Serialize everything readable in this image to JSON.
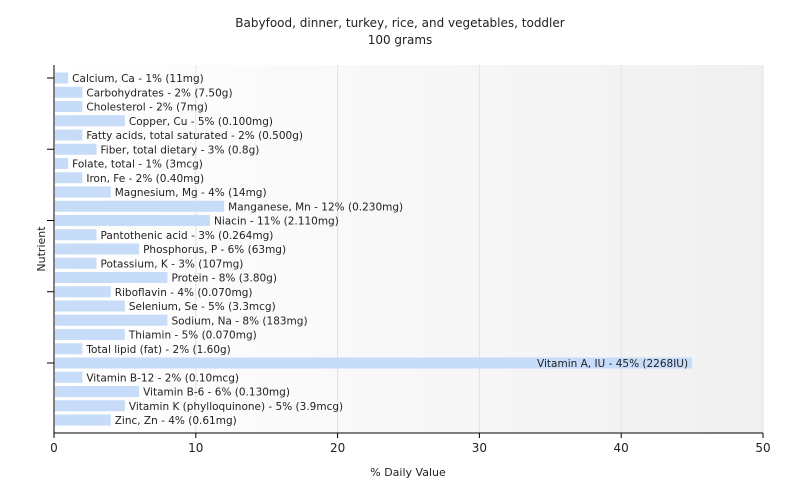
{
  "chart_data": {
    "type": "bar",
    "orientation": "horizontal",
    "title": "Babyfood, dinner, turkey, rice, and vegetables, toddler",
    "subtitle": "100 grams",
    "xlabel": "% Daily Value",
    "ylabel": "Nutrient",
    "xlim": [
      0,
      50
    ],
    "xticks": [
      "0",
      "10",
      "20",
      "30",
      "40",
      "50"
    ],
    "grid": true,
    "colors": {
      "bar": "#c6dcf8",
      "axis": "#000000",
      "grid": "#e2e2e2",
      "plot_bg_end": "#f0f0f0"
    },
    "categories": [
      "Calcium, Ca",
      "Carbohydrates",
      "Cholesterol",
      "Copper, Cu",
      "Fatty acids, total saturated",
      "Fiber, total dietary",
      "Folate, total",
      "Iron, Fe",
      "Magnesium, Mg",
      "Manganese, Mn",
      "Niacin",
      "Pantothenic acid",
      "Phosphorus, P",
      "Potassium, K",
      "Protein",
      "Riboflavin",
      "Selenium, Se",
      "Sodium, Na",
      "Thiamin",
      "Total lipid (fat)",
      "Vitamin A, IU",
      "Vitamin B-12",
      "Vitamin B-6",
      "Vitamin K (phylloquinone)",
      "Zinc, Zn"
    ],
    "values": [
      1,
      2,
      2,
      5,
      2,
      3,
      1,
      2,
      4,
      12,
      11,
      3,
      6,
      3,
      8,
      4,
      5,
      8,
      5,
      2,
      45,
      2,
      6,
      5,
      4
    ],
    "labels": [
      "Calcium, Ca - 1% (11mg)",
      "Carbohydrates - 2% (7.50g)",
      "Cholesterol - 2% (7mg)",
      "Copper, Cu - 5% (0.100mg)",
      "Fatty acids, total saturated - 2% (0.500g)",
      "Fiber, total dietary - 3% (0.8g)",
      "Folate, total - 1% (3mcg)",
      "Iron, Fe - 2% (0.40mg)",
      "Magnesium, Mg - 4% (14mg)",
      "Manganese, Mn - 12% (0.230mg)",
      "Niacin - 11% (2.110mg)",
      "Pantothenic acid - 3% (0.264mg)",
      "Phosphorus, P - 6% (63mg)",
      "Potassium, K - 3% (107mg)",
      "Protein - 8% (3.80g)",
      "Riboflavin - 4% (0.070mg)",
      "Selenium, Se - 5% (3.3mcg)",
      "Sodium, Na - 8% (183mg)",
      "Thiamin - 5% (0.070mg)",
      "Total lipid (fat) - 2% (1.60g)",
      "Vitamin A, IU - 45% (2268IU)",
      "Vitamin B-12 - 2% (0.10mcg)",
      "Vitamin B-6 - 6% (0.130mg)",
      "Vitamin K (phylloquinone) - 5% (3.9mcg)",
      "Zinc, Zn - 4% (0.61mg)"
    ]
  }
}
